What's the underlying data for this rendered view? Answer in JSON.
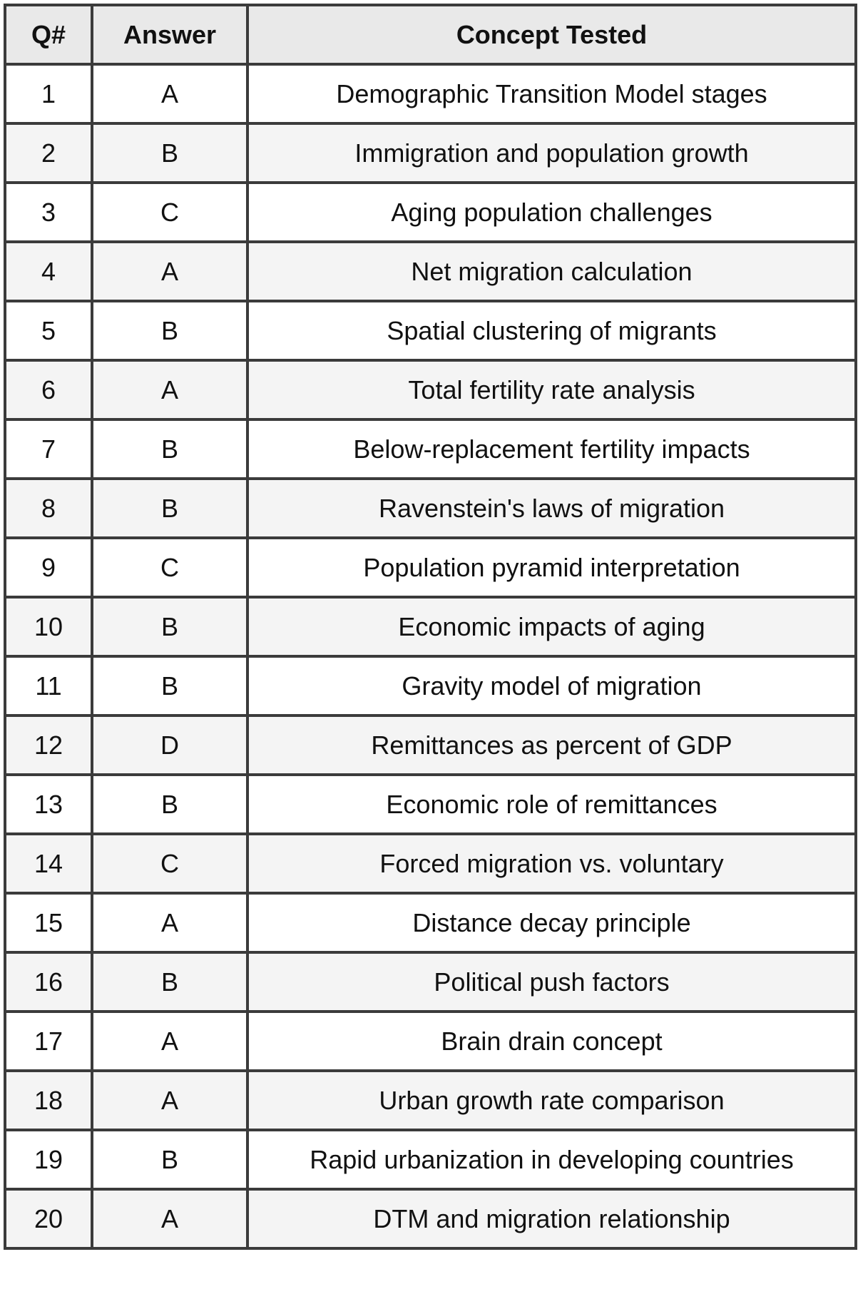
{
  "theme": {
    "border_color": "#3b3b3b",
    "header_bg": "#e9e9e9",
    "row_alt_bg": "#f4f4f4",
    "row_bg": "#ffffff",
    "text_color": "#111111"
  },
  "table": {
    "columns": [
      "Q#",
      "Answer",
      "Concept Tested"
    ],
    "rows": [
      {
        "q": "1",
        "answer": "A",
        "concept": "Demographic Transition Model stages"
      },
      {
        "q": "2",
        "answer": "B",
        "concept": "Immigration and population growth"
      },
      {
        "q": "3",
        "answer": "C",
        "concept": "Aging population challenges"
      },
      {
        "q": "4",
        "answer": "A",
        "concept": "Net migration calculation"
      },
      {
        "q": "5",
        "answer": "B",
        "concept": "Spatial clustering of migrants"
      },
      {
        "q": "6",
        "answer": "A",
        "concept": "Total fertility rate analysis"
      },
      {
        "q": "7",
        "answer": "B",
        "concept": "Below-replacement fertility impacts"
      },
      {
        "q": "8",
        "answer": "B",
        "concept": "Ravenstein's laws of migration"
      },
      {
        "q": "9",
        "answer": "C",
        "concept": "Population pyramid interpretation"
      },
      {
        "q": "10",
        "answer": "B",
        "concept": "Economic impacts of aging"
      },
      {
        "q": "11",
        "answer": "B",
        "concept": "Gravity model of migration"
      },
      {
        "q": "12",
        "answer": "D",
        "concept": "Remittances as percent of GDP"
      },
      {
        "q": "13",
        "answer": "B",
        "concept": "Economic role of remittances"
      },
      {
        "q": "14",
        "answer": "C",
        "concept": "Forced migration vs. voluntary"
      },
      {
        "q": "15",
        "answer": "A",
        "concept": "Distance decay principle"
      },
      {
        "q": "16",
        "answer": "B",
        "concept": "Political push factors"
      },
      {
        "q": "17",
        "answer": "A",
        "concept": "Brain drain concept"
      },
      {
        "q": "18",
        "answer": "A",
        "concept": "Urban growth rate comparison"
      },
      {
        "q": "19",
        "answer": "B",
        "concept": "Rapid urbanization in developing countries"
      },
      {
        "q": "20",
        "answer": "A",
        "concept": "DTM and migration relationship"
      }
    ]
  }
}
